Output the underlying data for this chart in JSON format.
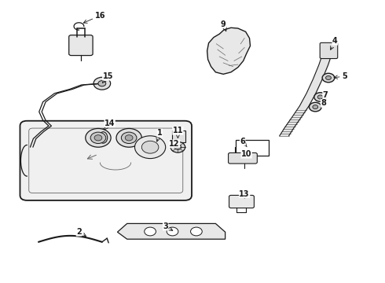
{
  "background_color": "#ffffff",
  "dark": "#1a1a1a",
  "gray": "#666666",
  "label_positions": {
    "1": [
      0.415,
      0.47,
      0.405,
      0.51
    ],
    "2": [
      0.205,
      0.82,
      0.23,
      0.84
    ],
    "3": [
      0.43,
      0.8,
      0.455,
      0.82
    ],
    "4": [
      0.87,
      0.145,
      0.855,
      0.185
    ],
    "5": [
      0.895,
      0.27,
      0.86,
      0.275
    ],
    "6": [
      0.63,
      0.5,
      0.645,
      0.525
    ],
    "7": [
      0.845,
      0.335,
      0.84,
      0.345
    ],
    "8": [
      0.84,
      0.365,
      0.832,
      0.38
    ],
    "9": [
      0.58,
      0.085,
      0.59,
      0.12
    ],
    "10": [
      0.64,
      0.545,
      0.645,
      0.555
    ],
    "11": [
      0.462,
      0.462,
      0.462,
      0.49
    ],
    "12": [
      0.453,
      0.508,
      0.458,
      0.52
    ],
    "13": [
      0.635,
      0.685,
      0.635,
      0.7
    ],
    "14": [
      0.285,
      0.435,
      0.27,
      0.46
    ],
    "15": [
      0.28,
      0.27,
      0.265,
      0.295
    ],
    "16": [
      0.26,
      0.055,
      0.21,
      0.085
    ]
  }
}
